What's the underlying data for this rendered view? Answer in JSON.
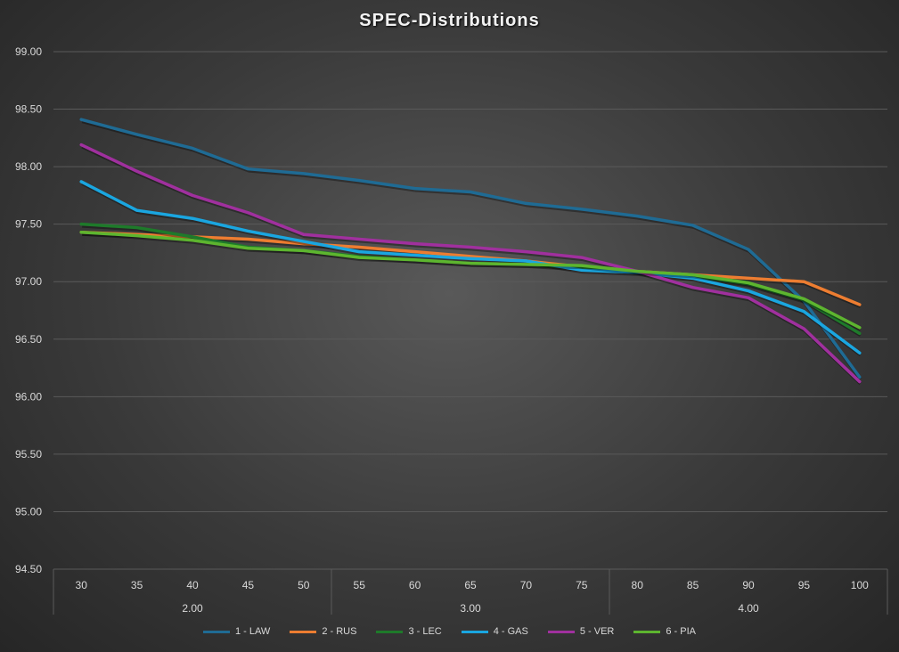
{
  "chart_data": {
    "type": "line",
    "title": "SPEC-Distributions",
    "xlabel": "",
    "ylabel": "",
    "ylim": [
      94.5,
      99.0
    ],
    "yticks": [
      "99.00",
      "98.50",
      "98.00",
      "97.50",
      "97.00",
      "96.50",
      "96.00",
      "95.50",
      "95.00",
      "94.50"
    ],
    "categories": [
      "30",
      "35",
      "40",
      "45",
      "50",
      "55",
      "60",
      "65",
      "70",
      "75",
      "80",
      "85",
      "90",
      "95",
      "100"
    ],
    "groups": [
      {
        "label": "2.00",
        "span": 5
      },
      {
        "label": "3.00",
        "span": 5
      },
      {
        "label": "4.00",
        "span": 5
      }
    ],
    "grid": true,
    "legend": "bottom",
    "series": [
      {
        "name": "1 - LAW",
        "color": "#1f6b94",
        "values": [
          98.41,
          98.28,
          98.16,
          97.98,
          97.94,
          97.88,
          97.81,
          97.78,
          97.68,
          97.63,
          97.57,
          97.49,
          97.28,
          96.83,
          96.17
        ]
      },
      {
        "name": "2 - RUS",
        "color": "#ed7d31",
        "values": [
          97.43,
          97.41,
          97.39,
          97.37,
          97.33,
          97.3,
          97.26,
          97.22,
          97.18,
          97.13,
          97.09,
          97.06,
          97.03,
          97.0,
          96.8
        ]
      },
      {
        "name": "3 - LEC",
        "color": "#1e7a2a",
        "values": [
          97.5,
          97.47,
          97.39,
          97.3,
          97.27,
          97.22,
          97.19,
          97.16,
          97.15,
          97.12,
          97.09,
          97.05,
          96.98,
          96.84,
          96.55
        ]
      },
      {
        "name": "4 - GAS",
        "color": "#1aa6e0",
        "values": [
          97.87,
          97.62,
          97.55,
          97.44,
          97.35,
          97.26,
          97.23,
          97.2,
          97.18,
          97.1,
          97.08,
          97.03,
          96.92,
          96.74,
          96.38
        ]
      },
      {
        "name": "5 - VER",
        "color": "#a0309e",
        "values": [
          98.19,
          97.96,
          97.75,
          97.6,
          97.41,
          97.37,
          97.33,
          97.3,
          97.26,
          97.21,
          97.09,
          96.95,
          96.86,
          96.59,
          96.13
        ]
      },
      {
        "name": "6 - PIA",
        "color": "#5db52f",
        "values": [
          97.43,
          97.4,
          97.36,
          97.29,
          97.27,
          97.21,
          97.19,
          97.16,
          97.15,
          97.14,
          97.09,
          97.06,
          96.99,
          96.85,
          96.6
        ]
      }
    ]
  }
}
